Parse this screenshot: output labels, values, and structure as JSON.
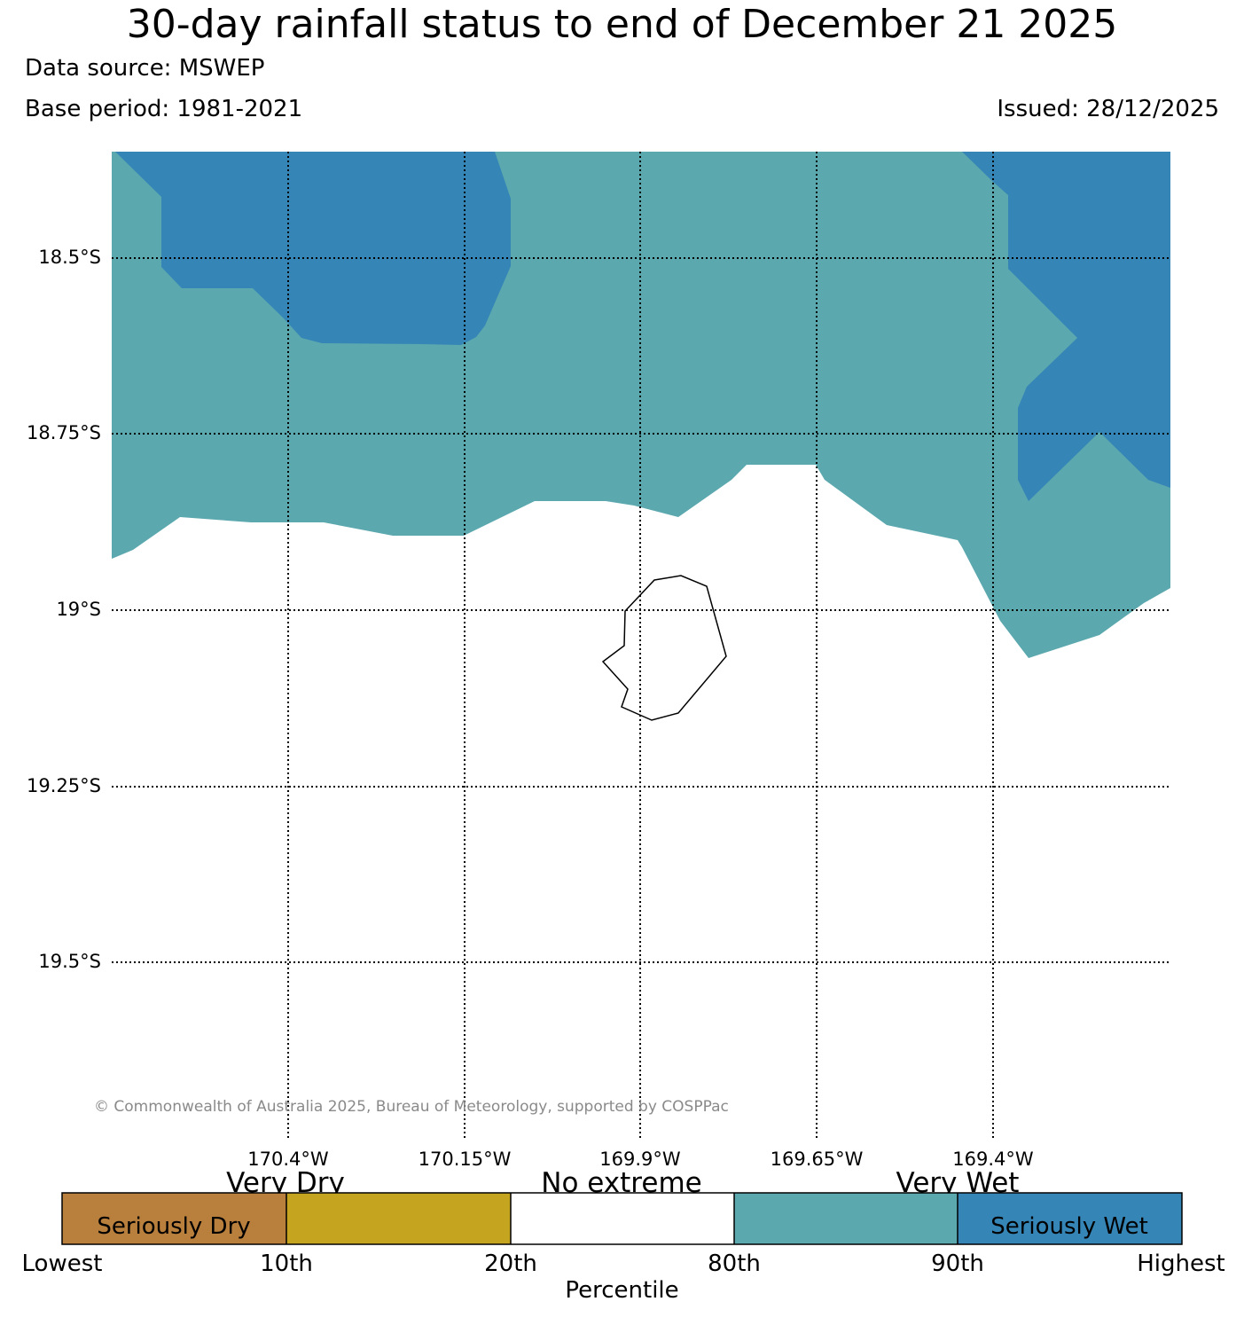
{
  "title": "30-day rainfall status to end of December 21 2025",
  "data_source": "Data source: MSWEP",
  "base_period": "Base period: 1981-2021",
  "issued": "Issued: 28/12/2025",
  "map": {
    "latitude_labels": [
      "18.5°S",
      "18.75°S",
      "19°S",
      "19.25°S",
      "19.5°S"
    ],
    "longitude_labels": [
      "170.4°W",
      "170.15°W",
      "169.9°W",
      "169.65°W",
      "169.4°W"
    ],
    "regions": [
      {
        "category": "Very Wet",
        "color": "#5ba8ae"
      },
      {
        "category": "Seriously Wet",
        "color": "#3585b7"
      },
      {
        "category": "No extreme",
        "color": "#ffffff"
      }
    ],
    "island_outline_color": "#000000"
  },
  "copyright": "© Commonwealth of Australia 2025, Bureau of Meteorology, supported by COSPPac",
  "legend": {
    "categories": [
      "Very Dry",
      "No extreme",
      "Very Wet"
    ],
    "segments": [
      {
        "label": "Seriously Dry",
        "color": "#b97f3c"
      },
      {
        "label": "",
        "color": "#c5a41f"
      },
      {
        "label": "",
        "color": "#ffffff"
      },
      {
        "label": "",
        "color": "#5ba8ae"
      },
      {
        "label": "Seriously Wet",
        "color": "#3585b7"
      }
    ],
    "ticks": [
      "Lowest",
      "10th",
      "20th",
      "80th",
      "90th",
      "Highest"
    ],
    "axis_label": "Percentile"
  }
}
